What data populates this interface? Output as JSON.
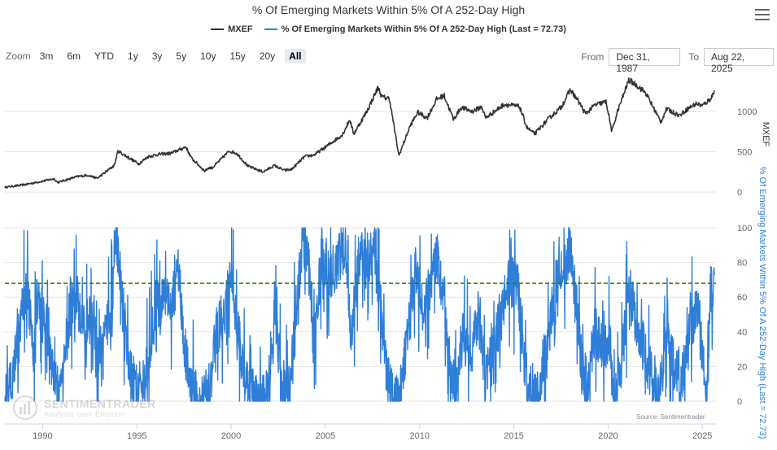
{
  "title": "% Of Emerging Markets Within 5% Of A 252-Day High",
  "legend": [
    {
      "label": "MXEF",
      "color": "#333333"
    },
    {
      "label": "% Of Emerging Markets Within 5% Of A 252-Day High (Last = 72.73)",
      "color": "#2f7ed8"
    }
  ],
  "zoom": {
    "label": "Zoom",
    "buttons": [
      "3m",
      "6m",
      "YTD",
      "1y",
      "3y",
      "5y",
      "10y",
      "15y",
      "20y",
      "All"
    ],
    "active": "All"
  },
  "range": {
    "from_label": "From",
    "from_value": "Dec 31, 1987",
    "to_label": "To",
    "to_value": "Aug 22, 2025"
  },
  "watermark": {
    "main": "SENTIMENTRADER",
    "sub": "Analysis over Emotion"
  },
  "source": "Source: Sentimentrader",
  "chart_data": {
    "type": "line",
    "x_range": [
      "1987-12-31",
      "2025-08-22"
    ],
    "x_ticks": [
      "1990",
      "1995",
      "2000",
      "2005",
      "2010",
      "2015",
      "2020",
      "2025"
    ],
    "panels": [
      {
        "series_name": "MXEF",
        "color": "#333333",
        "ylabel": "MXEF",
        "y_ticks": [
          0,
          500,
          1000
        ],
        "ylim": [
          0,
          1400
        ],
        "points": [
          [
            1988.0,
            60
          ],
          [
            1989.0,
            90
          ],
          [
            1989.9,
            130
          ],
          [
            1990.6,
            165
          ],
          [
            1990.8,
            120
          ],
          [
            1991.8,
            190
          ],
          [
            1992.4,
            210
          ],
          [
            1992.9,
            170
          ],
          [
            1993.8,
            330
          ],
          [
            1994.0,
            510
          ],
          [
            1994.4,
            450
          ],
          [
            1995.1,
            350
          ],
          [
            1995.6,
            440
          ],
          [
            1996.2,
            470
          ],
          [
            1996.8,
            480
          ],
          [
            1997.6,
            560
          ],
          [
            1997.9,
            420
          ],
          [
            1998.6,
            260
          ],
          [
            1998.8,
            300
          ],
          [
            1999.0,
            300
          ],
          [
            1999.9,
            510
          ],
          [
            2000.3,
            480
          ],
          [
            2000.9,
            320
          ],
          [
            2001.7,
            250
          ],
          [
            2002.3,
            330
          ],
          [
            2002.8,
            270
          ],
          [
            2003.2,
            280
          ],
          [
            2003.9,
            440
          ],
          [
            2004.4,
            460
          ],
          [
            2004.9,
            540
          ],
          [
            2005.9,
            710
          ],
          [
            2006.3,
            900
          ],
          [
            2006.5,
            720
          ],
          [
            2007.2,
            1000
          ],
          [
            2007.8,
            1300
          ],
          [
            2008.0,
            1180
          ],
          [
            2008.4,
            1160
          ],
          [
            2008.9,
            450
          ],
          [
            2009.5,
            820
          ],
          [
            2009.9,
            990
          ],
          [
            2010.4,
            920
          ],
          [
            2010.9,
            1150
          ],
          [
            2011.3,
            1200
          ],
          [
            2011.8,
            900
          ],
          [
            2012.2,
            1050
          ],
          [
            2012.8,
            1000
          ],
          [
            2013.3,
            1060
          ],
          [
            2013.5,
            920
          ],
          [
            2014.5,
            1090
          ],
          [
            2015.3,
            1060
          ],
          [
            2015.7,
            800
          ],
          [
            2016.1,
            720
          ],
          [
            2016.8,
            900
          ],
          [
            2017.5,
            1050
          ],
          [
            2018.0,
            1270
          ],
          [
            2018.5,
            1100
          ],
          [
            2018.8,
            970
          ],
          [
            2019.3,
            1080
          ],
          [
            2019.9,
            1120
          ],
          [
            2020.2,
            750
          ],
          [
            2020.5,
            1000
          ],
          [
            2021.1,
            1390
          ],
          [
            2021.5,
            1330
          ],
          [
            2022.0,
            1230
          ],
          [
            2022.8,
            870
          ],
          [
            2023.1,
            1030
          ],
          [
            2023.8,
            950
          ],
          [
            2024.2,
            1030
          ],
          [
            2024.7,
            1100
          ],
          [
            2025.0,
            1070
          ],
          [
            2025.4,
            1150
          ],
          [
            2025.64,
            1240
          ]
        ]
      },
      {
        "series_name": "% Of Emerging Markets Within 5% Of A 252-Day High (Last = 72.73)",
        "color": "#2f7ed8",
        "ylabel": "% Of Emerging Markets Within 5% Of A 252-Day High (Last = 72.73)",
        "y_ticks": [
          0,
          20,
          40,
          60,
          80,
          100
        ],
        "ylim": [
          -5,
          100
        ],
        "reference_line": {
          "value": 68,
          "color": "#2e7d00",
          "style": "dashed"
        },
        "last_value": 72.73,
        "points": [
          [
            1988.0,
            0
          ],
          [
            1988.5,
            20
          ],
          [
            1988.9,
            55
          ],
          [
            1989.2,
            70
          ],
          [
            1989.5,
            30
          ],
          [
            1989.8,
            58
          ],
          [
            1990.2,
            45
          ],
          [
            1990.6,
            15
          ],
          [
            1990.9,
            0
          ],
          [
            1991.3,
            45
          ],
          [
            1991.8,
            60
          ],
          [
            1992.2,
            40
          ],
          [
            1992.6,
            50
          ],
          [
            1992.9,
            20
          ],
          [
            1993.3,
            40
          ],
          [
            1993.7,
            60
          ],
          [
            1993.9,
            98
          ],
          [
            1994.2,
            60
          ],
          [
            1994.6,
            20
          ],
          [
            1994.9,
            5
          ],
          [
            1995.3,
            10
          ],
          [
            1995.7,
            30
          ],
          [
            1996.0,
            55
          ],
          [
            1996.4,
            60
          ],
          [
            1996.8,
            55
          ],
          [
            1997.2,
            75
          ],
          [
            1997.5,
            35
          ],
          [
            1997.8,
            10
          ],
          [
            1998.4,
            0
          ],
          [
            1998.9,
            10
          ],
          [
            1999.2,
            40
          ],
          [
            1999.6,
            50
          ],
          [
            2000.0,
            70
          ],
          [
            2000.3,
            45
          ],
          [
            2000.7,
            15
          ],
          [
            2001.2,
            5
          ],
          [
            2001.6,
            0
          ],
          [
            2001.9,
            0
          ],
          [
            2002.3,
            50
          ],
          [
            2002.7,
            10
          ],
          [
            2003.1,
            5
          ],
          [
            2003.5,
            60
          ],
          [
            2003.8,
            95
          ],
          [
            2004.1,
            80
          ],
          [
            2004.4,
            30
          ],
          [
            2004.8,
            85
          ],
          [
            2005.2,
            70
          ],
          [
            2005.6,
            80
          ],
          [
            2006.0,
            90
          ],
          [
            2006.4,
            40
          ],
          [
            2006.8,
            85
          ],
          [
            2007.2,
            80
          ],
          [
            2007.6,
            85
          ],
          [
            2007.9,
            60
          ],
          [
            2008.2,
            20
          ],
          [
            2008.6,
            0
          ],
          [
            2008.9,
            0
          ],
          [
            2009.4,
            40
          ],
          [
            2009.8,
            75
          ],
          [
            2010.2,
            50
          ],
          [
            2010.6,
            70
          ],
          [
            2010.9,
            85
          ],
          [
            2011.3,
            60
          ],
          [
            2011.6,
            20
          ],
          [
            2011.9,
            5
          ],
          [
            2012.3,
            40
          ],
          [
            2012.7,
            25
          ],
          [
            2013.1,
            50
          ],
          [
            2013.5,
            15
          ],
          [
            2013.9,
            35
          ],
          [
            2014.3,
            45
          ],
          [
            2014.7,
            70
          ],
          [
            2015.2,
            65
          ],
          [
            2015.5,
            30
          ],
          [
            2015.8,
            5
          ],
          [
            2016.2,
            0
          ],
          [
            2016.6,
            25
          ],
          [
            2017.0,
            50
          ],
          [
            2017.4,
            80
          ],
          [
            2017.7,
            75
          ],
          [
            2018.0,
            85
          ],
          [
            2018.3,
            60
          ],
          [
            2018.6,
            20
          ],
          [
            2018.9,
            10
          ],
          [
            2019.3,
            40
          ],
          [
            2019.7,
            30
          ],
          [
            2020.1,
            35
          ],
          [
            2020.3,
            0
          ],
          [
            2020.7,
            20
          ],
          [
            2021.1,
            65
          ],
          [
            2021.5,
            45
          ],
          [
            2021.9,
            30
          ],
          [
            2022.3,
            15
          ],
          [
            2022.7,
            0
          ],
          [
            2023.1,
            40
          ],
          [
            2023.5,
            20
          ],
          [
            2023.9,
            10
          ],
          [
            2024.3,
            40
          ],
          [
            2024.7,
            55
          ],
          [
            2025.0,
            30
          ],
          [
            2025.2,
            0
          ],
          [
            2025.4,
            60
          ],
          [
            2025.64,
            72.73
          ]
        ]
      }
    ]
  }
}
